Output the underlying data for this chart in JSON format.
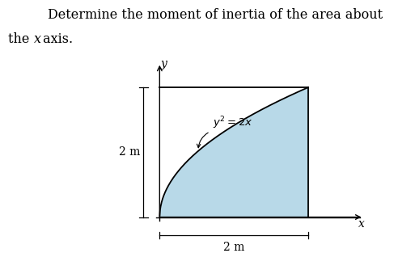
{
  "title_line1": "Determine the moment of inertia of the area about",
  "title_line2": "the ",
  "title_line2_italic": "x",
  "title_line2_end": " axis.",
  "curve_label": "$y^2 = 2x$",
  "dim_label_y": "2 m",
  "dim_label_x": "2 m",
  "fill_color": "#b8d9e8",
  "curve_color": "#000000",
  "background_color": "#ffffff",
  "x_max": 2,
  "y_max": 2,
  "title_fontsize": 11.5,
  "label_fontsize": 10,
  "axis_label_fontsize": 10
}
